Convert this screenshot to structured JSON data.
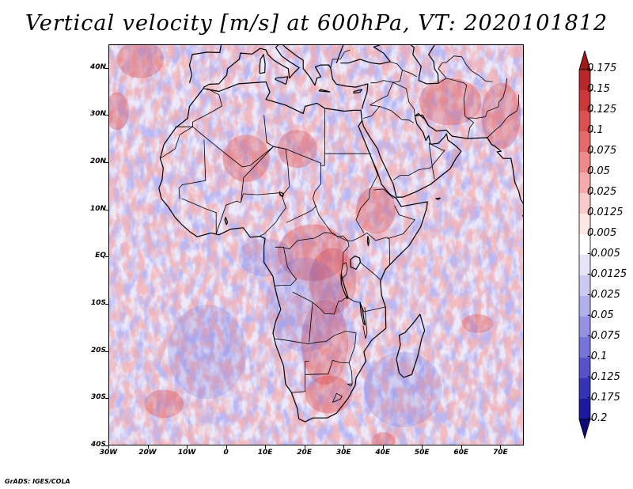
{
  "title": "Vertical velocity [m/s] at 600hPa, VT: 2020101812",
  "credit": "GrADS: IGES/COLA",
  "map": {
    "region": "Africa and Middle East",
    "lon_range": [
      -30,
      76
    ],
    "lat_range": [
      -40,
      45
    ],
    "lat_labels": [
      "40N",
      "30N",
      "20N",
      "10N",
      "EQ",
      "10S",
      "20S",
      "30S",
      "40S"
    ],
    "lat_values": [
      40,
      30,
      20,
      10,
      0,
      -10,
      -20,
      -30,
      -40
    ],
    "lon_labels": [
      "30W",
      "20W",
      "10W",
      "0",
      "10E",
      "20E",
      "30E",
      "40E",
      "50E",
      "60E",
      "70E"
    ],
    "lon_values": [
      -30,
      -20,
      -10,
      0,
      10,
      20,
      30,
      40,
      50,
      60,
      70
    ]
  },
  "colorbar": {
    "labels": [
      "0.175",
      "0.15",
      "0.125",
      "0.1",
      "0.075",
      "0.05",
      "0.025",
      "0.0125",
      "0.005",
      "-0.005",
      "-0.0125",
      "-0.025",
      "-0.05",
      "-0.075",
      "-0.1",
      "-0.125",
      "-0.175",
      "-0.2"
    ],
    "colors": [
      "#a11a1a",
      "#b82828",
      "#cc3838",
      "#dd5050",
      "#e76a6a",
      "#f08a8a",
      "#f6aaaa",
      "#fbcaca",
      "#fde6e6",
      "#ffffff",
      "#e6e4f8",
      "#cccaf2",
      "#b2b0ec",
      "#9592e4",
      "#7673da",
      "#5552cc",
      "#3532b8",
      "#1c18a0",
      "#0d0a7c"
    ]
  }
}
